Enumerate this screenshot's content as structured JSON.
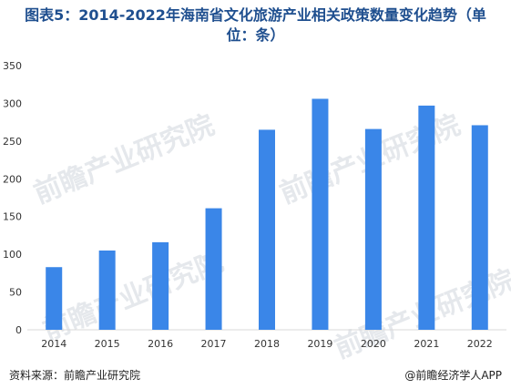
{
  "title_line1": "图表5：2014-2022年海南省文化旅游产业相关政策数量变化趋势（单",
  "title_line2": "位：条）",
  "source": "资料来源：前瞻产业研究院",
  "credit": "@前瞻经济学人APP",
  "watermark": "前瞻产业研究院",
  "colors": {
    "bar": "#3a86e8",
    "title": "#1f4f8f",
    "axis_text": "#333333"
  },
  "chart_data": {
    "type": "bar",
    "categories": [
      "2014",
      "2015",
      "2016",
      "2017",
      "2018",
      "2019",
      "2020",
      "2021",
      "2022"
    ],
    "values": [
      83,
      105,
      116,
      161,
      265,
      306,
      266,
      297,
      271
    ],
    "ylim": [
      0,
      350
    ],
    "yticks": [
      0,
      50,
      100,
      150,
      200,
      250,
      300,
      350
    ],
    "grid": false,
    "legend": "none"
  }
}
